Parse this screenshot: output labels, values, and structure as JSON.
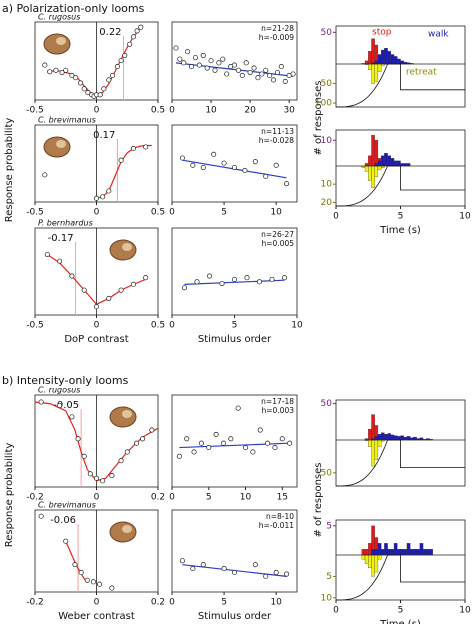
{
  "sections": [
    {
      "title": "a) Polarization-only looms",
      "ylabel_left": "Response probability",
      "ylabel_right": "# of responses"
    },
    {
      "title": "b) Intensity-only looms",
      "ylabel_left": "Response probability",
      "ylabel_right": "# of responses"
    }
  ],
  "chart_data": [
    {
      "type": "scatter",
      "species": "C. rugosus",
      "threshold": 0.22,
      "xlim": [
        -0.5,
        0.5
      ],
      "xticks": [
        -0.5,
        0,
        0.5
      ],
      "ylim": [
        -0.05,
        1.0
      ],
      "x": [
        -0.42,
        -0.38,
        -0.33,
        -0.28,
        -0.25,
        -0.2,
        -0.17,
        -0.13,
        -0.1,
        -0.07,
        -0.04,
        -0.02,
        0.0,
        0.03,
        0.06,
        0.1,
        0.13,
        0.17,
        0.2,
        0.23,
        0.27,
        0.3,
        0.33,
        0.36
      ],
      "values": [
        0.42,
        0.33,
        0.35,
        0.32,
        0.35,
        0.28,
        0.25,
        0.18,
        0.1,
        0.05,
        0.02,
        0.0,
        0.02,
        0.02,
        0.1,
        0.22,
        0.28,
        0.4,
        0.48,
        0.55,
        0.7,
        0.8,
        0.88,
        0.93
      ],
      "fit": {
        "color": "#e8231f",
        "x": [
          -0.4,
          -0.3,
          -0.2,
          -0.15,
          -0.1,
          -0.05,
          0.0,
          0.05,
          0.1,
          0.15,
          0.2,
          0.25,
          0.3,
          0.35
        ],
        "values": [
          0.34,
          0.34,
          0.3,
          0.24,
          0.14,
          0.05,
          0.01,
          0.05,
          0.17,
          0.33,
          0.5,
          0.66,
          0.8,
          0.9
        ]
      }
    },
    {
      "type": "scatter",
      "species": "C. brevimanus",
      "threshold": 0.17,
      "xlim": [
        -0.5,
        0.5
      ],
      "xticks": [
        -0.5,
        0,
        0.5
      ],
      "ylim": [
        -0.05,
        1.0
      ],
      "x": [
        -0.42,
        0.0,
        0.05,
        0.1,
        0.2,
        0.3,
        0.4
      ],
      "values": [
        0.32,
        0.0,
        0.02,
        0.1,
        0.52,
        0.68,
        0.7
      ],
      "fit": {
        "color": "#e8231f",
        "x": [
          0.0,
          0.05,
          0.1,
          0.15,
          0.2,
          0.25,
          0.3,
          0.35,
          0.4,
          0.45
        ],
        "values": [
          0.0,
          0.02,
          0.1,
          0.3,
          0.5,
          0.62,
          0.68,
          0.71,
          0.72,
          0.72
        ]
      }
    },
    {
      "type": "scatter",
      "species": "P. bernhardus",
      "threshold": -0.17,
      "xlim": [
        -0.5,
        0.5
      ],
      "xticks": [
        -0.5,
        0,
        0.5
      ],
      "ylim": [
        -0.05,
        1.0
      ],
      "xlabel": "DoP contrast",
      "x": [
        -0.4,
        -0.3,
        -0.2,
        -0.1,
        0.0,
        0.1,
        0.2,
        0.3,
        0.4
      ],
      "values": [
        0.68,
        0.6,
        0.42,
        0.25,
        0.05,
        0.15,
        0.25,
        0.32,
        0.4
      ],
      "fit": {
        "color": "#e8231f",
        "x": [
          -0.4,
          -0.3,
          -0.2,
          -0.1,
          0.0,
          0.1,
          0.2,
          0.3,
          0.4
        ],
        "values": [
          0.68,
          0.58,
          0.42,
          0.25,
          0.08,
          0.15,
          0.25,
          0.32,
          0.38
        ]
      }
    },
    {
      "type": "scatter",
      "species": "C. rugosus",
      "threshold": -0.05,
      "xlim": [
        -0.2,
        0.2
      ],
      "xticks": [
        -0.2,
        0,
        0.2
      ],
      "ylim": [
        -0.05,
        1.0
      ],
      "x": [
        -0.18,
        -0.12,
        -0.08,
        -0.06,
        -0.04,
        -0.02,
        0.0,
        0.02,
        0.05,
        0.08,
        0.1,
        0.13,
        0.15,
        0.18
      ],
      "values": [
        0.92,
        0.88,
        0.75,
        0.5,
        0.3,
        0.1,
        0.05,
        0.02,
        0.08,
        0.25,
        0.35,
        0.45,
        0.5,
        0.6
      ],
      "fit": {
        "color": "#e8231f",
        "x": [
          -0.2,
          -0.15,
          -0.1,
          -0.07,
          -0.05,
          -0.03,
          0.0,
          0.03,
          0.06,
          0.1,
          0.15,
          0.2
        ],
        "values": [
          0.92,
          0.9,
          0.82,
          0.6,
          0.35,
          0.15,
          0.02,
          0.05,
          0.18,
          0.35,
          0.52,
          0.62
        ]
      }
    },
    {
      "type": "scatter",
      "species": "C. brevimanus",
      "threshold": -0.06,
      "xlim": [
        -0.2,
        0.2
      ],
      "xticks": [
        -0.2,
        0,
        0.2
      ],
      "ylim": [
        -0.05,
        1.0
      ],
      "xlabel": "Weber contrast",
      "x": [
        -0.18,
        -0.1,
        -0.07,
        -0.05,
        -0.03,
        -0.01,
        0.01,
        0.05
      ],
      "values": [
        0.92,
        0.6,
        0.3,
        0.2,
        0.1,
        0.08,
        0.05,
        0.0
      ],
      "fit": {
        "color": "#e8231f",
        "x": [
          -0.1,
          -0.08,
          -0.06,
          -0.04,
          -0.03
        ],
        "values": [
          0.6,
          0.42,
          0.25,
          0.12,
          0.08
        ]
      }
    },
    {
      "type": "scatter",
      "stats": [
        "n=21-28",
        "h=-0.009"
      ],
      "xlim": [
        0,
        32
      ],
      "xticks": [
        0,
        10,
        20,
        30
      ],
      "ylim": [
        -0.05,
        1.0
      ],
      "x": [
        1,
        2,
        3,
        4,
        5,
        6,
        7,
        8,
        9,
        10,
        11,
        12,
        13,
        14,
        15,
        16,
        17,
        18,
        19,
        20,
        21,
        22,
        23,
        24,
        25,
        26,
        27,
        28,
        29,
        30,
        31
      ],
      "values": [
        0.65,
        0.5,
        0.45,
        0.6,
        0.4,
        0.52,
        0.42,
        0.55,
        0.38,
        0.48,
        0.35,
        0.45,
        0.5,
        0.3,
        0.4,
        0.42,
        0.35,
        0.28,
        0.45,
        0.32,
        0.38,
        0.25,
        0.3,
        0.35,
        0.28,
        0.22,
        0.32,
        0.4,
        0.2,
        0.28,
        0.3
      ],
      "fit": {
        "color": "#2b3fc4",
        "x": [
          1,
          31
        ],
        "values": [
          0.45,
          0.27
        ]
      }
    },
    {
      "type": "scatter",
      "stats": [
        "n=11-13",
        "h=-0.028"
      ],
      "xlim": [
        0,
        12
      ],
      "xticks": [
        0,
        5,
        10
      ],
      "ylim": [
        -0.05,
        1.0
      ],
      "x": [
        1,
        2,
        3,
        4,
        5,
        6,
        7,
        8,
        9,
        10,
        11
      ],
      "values": [
        0.55,
        0.45,
        0.42,
        0.6,
        0.48,
        0.42,
        0.38,
        0.5,
        0.3,
        0.45,
        0.2
      ],
      "fit": {
        "color": "#2b3fc4",
        "x": [
          1,
          11
        ],
        "values": [
          0.52,
          0.28
        ]
      }
    },
    {
      "type": "scatter",
      "stats": [
        "n=26-27",
        "h=0.005"
      ],
      "xlim": [
        0,
        10
      ],
      "xticks": [
        0,
        5,
        10
      ],
      "ylim": [
        -0.05,
        1.0
      ],
      "xlabel": "Stimulus order",
      "x": [
        1,
        2,
        3,
        4,
        5,
        6,
        7,
        8,
        9
      ],
      "values": [
        0.28,
        0.35,
        0.42,
        0.33,
        0.38,
        0.4,
        0.35,
        0.38,
        0.4
      ],
      "fit": {
        "color": "#2b3fc4",
        "x": [
          1,
          9
        ],
        "values": [
          0.32,
          0.37
        ]
      }
    },
    {
      "type": "scatter",
      "stats": [
        "n=17-18",
        "h=0.003"
      ],
      "xlim": [
        0,
        17
      ],
      "xticks": [
        0,
        5,
        10,
        15
      ],
      "ylim": [
        -0.05,
        1.0
      ],
      "x": [
        1,
        2,
        3,
        4,
        5,
        6,
        7,
        8,
        9,
        10,
        11,
        12,
        13,
        14,
        15,
        16
      ],
      "values": [
        0.3,
        0.5,
        0.35,
        0.45,
        0.4,
        0.55,
        0.45,
        0.5,
        0.85,
        0.4,
        0.35,
        0.6,
        0.45,
        0.4,
        0.5,
        0.45
      ],
      "fit": {
        "color": "#2b3fc4",
        "x": [
          1,
          16
        ],
        "values": [
          0.4,
          0.45
        ]
      }
    },
    {
      "type": "scatter",
      "stats": [
        "n=8-10",
        "h=-0.011"
      ],
      "xlim": [
        0,
        12
      ],
      "xticks": [
        0,
        5,
        10
      ],
      "ylim": [
        -0.05,
        1.0
      ],
      "xlabel": "Stimulus order",
      "x": [
        1,
        2,
        3,
        5,
        6,
        8,
        9,
        10,
        11
      ],
      "values": [
        0.35,
        0.25,
        0.3,
        0.25,
        0.2,
        0.3,
        0.15,
        0.2,
        0.18
      ],
      "fit": {
        "color": "#2b3fc4",
        "x": [
          1,
          11
        ],
        "values": [
          0.3,
          0.15
        ]
      }
    },
    {
      "type": "histogram",
      "xlim": [
        0,
        10
      ],
      "bins": [
        1.5,
        1.75,
        2.0,
        2.25,
        2.5,
        2.75,
        3.0,
        3.25,
        3.5,
        3.75,
        4.0,
        4.25,
        4.5,
        4.75,
        5.0,
        5.25,
        5.5,
        5.75,
        6.0,
        6.25,
        6.5,
        6.75,
        7.0,
        7.25,
        7.5
      ],
      "ylim": [
        0,
        60
      ],
      "yticks": [
        50
      ],
      "ylim_down": [
        0,
        110
      ],
      "yticks_down": [
        50,
        100
      ],
      "series": [
        {
          "name": "stop",
          "color": "#e31a1c",
          "values": [
            0,
            0,
            1,
            5,
            20,
            40,
            30,
            8,
            2,
            0,
            0,
            0,
            0,
            0,
            0,
            0,
            0,
            0,
            0,
            0,
            0,
            0,
            0,
            0
          ]
        },
        {
          "name": "walk",
          "color": "#1c1cb4",
          "values": [
            0,
            0,
            0,
            0,
            0,
            2,
            5,
            15,
            22,
            25,
            20,
            15,
            12,
            8,
            5,
            3,
            2,
            1,
            0,
            0,
            0,
            0,
            0,
            0
          ]
        },
        {
          "name": "retreat",
          "color": "#f2f20f",
          "downward": true,
          "values": [
            0,
            0,
            0,
            2,
            15,
            50,
            45,
            20,
            5,
            1,
            0,
            0,
            0,
            0,
            0,
            0,
            0,
            0,
            0,
            0,
            0,
            0,
            0,
            0
          ]
        }
      ]
    },
    {
      "type": "histogram",
      "xlim": [
        0,
        10
      ],
      "xticks": [
        0,
        5,
        10
      ],
      "xlabel": "Time (s)",
      "bins": [
        1.5,
        1.75,
        2.0,
        2.25,
        2.5,
        2.75,
        3.0,
        3.25,
        3.5,
        3.75,
        4.0,
        4.25,
        4.5,
        4.75,
        5.0,
        5.25,
        5.5,
        5.75,
        6.0,
        6.25,
        6.5,
        6.75,
        7.0,
        7.25,
        7.5
      ],
      "ylim": [
        0,
        14
      ],
      "yticks": [
        10
      ],
      "ylim_down": [
        0,
        22
      ],
      "yticks_down": [
        10,
        20
      ],
      "series": [
        {
          "color": "#e31a1c",
          "values": [
            0,
            0,
            0,
            1,
            4,
            12,
            10,
            3,
            1,
            0,
            0,
            0,
            0,
            0,
            0,
            0,
            0,
            0,
            0,
            0,
            0,
            0,
            0,
            0
          ]
        },
        {
          "color": "#1c1cb4",
          "values": [
            0,
            0,
            0,
            0,
            0,
            0,
            1,
            2,
            4,
            5,
            4,
            3,
            2,
            2,
            1,
            1,
            1,
            0,
            0,
            0,
            0,
            0,
            0,
            0
          ]
        },
        {
          "color": "#f2f20f",
          "downward": true,
          "values": [
            0,
            0,
            1,
            3,
            8,
            12,
            6,
            2,
            1,
            0,
            0,
            0,
            0,
            0,
            0,
            0,
            0,
            0,
            0,
            0,
            0,
            0,
            0,
            0
          ]
        }
      ]
    },
    {
      "type": "histogram",
      "xlim": [
        0,
        10
      ],
      "bins": [
        1.5,
        1.75,
        2.0,
        2.25,
        2.5,
        2.75,
        3.0,
        3.25,
        3.5,
        3.75,
        4.0,
        4.25,
        4.5,
        4.75,
        5.0,
        5.25,
        5.5,
        5.75,
        6.0,
        6.25,
        6.5,
        6.75,
        7.0,
        7.25,
        7.5
      ],
      "ylim": [
        0,
        55
      ],
      "yticks": [
        50
      ],
      "ylim_down": [
        0,
        70
      ],
      "yticks_down": [
        50
      ],
      "series": [
        {
          "color": "#e31a1c",
          "values": [
            0,
            0,
            0,
            2,
            15,
            35,
            20,
            5,
            1,
            0,
            0,
            0,
            0,
            0,
            0,
            0,
            0,
            0,
            0,
            0,
            0,
            0,
            0,
            0
          ]
        },
        {
          "color": "#1c1cb4",
          "values": [
            0,
            0,
            0,
            0,
            0,
            2,
            5,
            8,
            10,
            8,
            9,
            7,
            6,
            5,
            6,
            4,
            5,
            3,
            4,
            2,
            3,
            1,
            2,
            1
          ]
        },
        {
          "color": "#f2f20f",
          "downward": true,
          "values": [
            0,
            0,
            0,
            1,
            10,
            40,
            30,
            10,
            2,
            0,
            0,
            0,
            0,
            0,
            0,
            0,
            0,
            0,
            0,
            0,
            0,
            0,
            0,
            0
          ]
        }
      ]
    },
    {
      "type": "histogram",
      "xlim": [
        0,
        10
      ],
      "xticks": [
        0,
        5,
        10
      ],
      "xlabel": "Time (s)",
      "bins": [
        1.5,
        1.75,
        2.0,
        2.25,
        2.5,
        2.75,
        3.0,
        3.25,
        3.5,
        3.75,
        4.0,
        4.25,
        4.5,
        4.75,
        5.0,
        5.25,
        5.5,
        5.75,
        6.0,
        6.25,
        6.5,
        6.75,
        7.0,
        7.25,
        7.5
      ],
      "ylim": [
        0,
        6
      ],
      "yticks": [
        5
      ],
      "ylim_down": [
        0,
        10.5
      ],
      "yticks_down": [
        5,
        10
      ],
      "series": [
        {
          "color": "#e31a1c",
          "values": [
            0,
            0,
            1,
            1,
            2,
            5,
            3,
            1,
            0,
            0,
            0,
            0,
            0,
            0,
            0,
            0,
            0,
            0,
            0,
            0,
            0,
            0,
            0,
            0
          ]
        },
        {
          "color": "#1c1cb4",
          "values": [
            0,
            0,
            0,
            0,
            0,
            1,
            1,
            2,
            1,
            2,
            1,
            1,
            2,
            1,
            1,
            1,
            2,
            1,
            1,
            1,
            2,
            1,
            1,
            1
          ]
        },
        {
          "color": "#f2f20f",
          "downward": true,
          "values": [
            0,
            0,
            1,
            2,
            3,
            5,
            4,
            1,
            0,
            0,
            0,
            0,
            0,
            0,
            0,
            0,
            0,
            0,
            0,
            0,
            0,
            0,
            0,
            0
          ]
        }
      ]
    }
  ]
}
